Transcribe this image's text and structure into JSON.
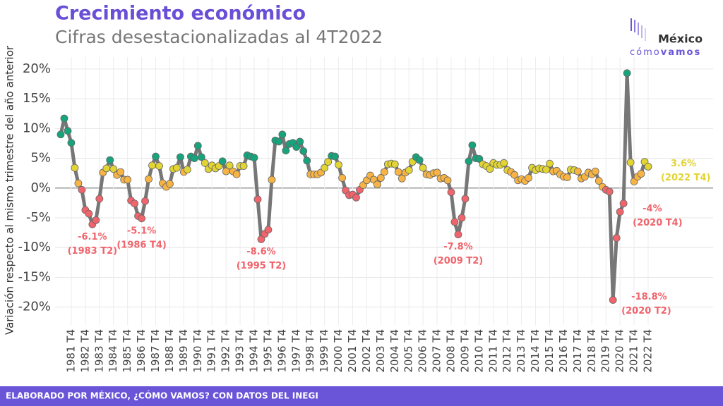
{
  "chart_data": {
    "type": "line",
    "title": "Crecimiento económico",
    "subtitle": "Cifras desestacionalizadas al 4T2022",
    "y_label": "Variación respecto al mismo trimestre del año anterior",
    "footer": "ELABORADO POR MÉXICO, ¿CÓMO VAMOS? CON DATOS DEL INEGI",
    "logo": {
      "top": "México",
      "bottom_light": "cómo",
      "bottom_bold": "vamos"
    },
    "categories": [
      null,
      null,
      null,
      "1981 T4",
      null,
      null,
      null,
      "1982 T4",
      null,
      null,
      null,
      "1983 T4",
      null,
      null,
      null,
      "1984 T4",
      null,
      null,
      null,
      "1985 T4",
      null,
      null,
      null,
      "1986 T4",
      null,
      null,
      null,
      "1987 T4",
      null,
      null,
      null,
      "1988 T4",
      null,
      null,
      null,
      "1989 T4",
      null,
      null,
      null,
      "1990 T4",
      null,
      null,
      null,
      "1991 T4",
      null,
      null,
      null,
      "1992 T4",
      null,
      null,
      null,
      "1993 T4",
      null,
      null,
      null,
      "1994 T4",
      null,
      null,
      null,
      "1995 T4",
      null,
      null,
      null,
      "1996 T4",
      null,
      null,
      null,
      "1997 T4",
      null,
      null,
      null,
      "1998 T4",
      null,
      null,
      null,
      "1999 T4",
      null,
      null,
      null,
      "2000 T4",
      null,
      null,
      null,
      "2001 T4",
      null,
      null,
      null,
      "2002 T4",
      null,
      null,
      null,
      "2003 T4",
      null,
      null,
      null,
      "2004 T4",
      null,
      null,
      null,
      "2005 T4",
      null,
      null,
      null,
      "2006 T4",
      null,
      null,
      null,
      "2007 T4",
      null,
      null,
      null,
      "2008 T4",
      null,
      null,
      null,
      "2009 T4",
      null,
      null,
      null,
      "2010 T4",
      null,
      null,
      null,
      "2011 T4",
      null,
      null,
      null,
      "2012 T4",
      null,
      null,
      null,
      "2013 T4",
      null,
      null,
      null,
      "2014 T4",
      null,
      null,
      null,
      "2015 T4",
      null,
      null,
      null,
      "2016 T4",
      null,
      null,
      null,
      "2017 T4",
      null,
      null,
      null,
      "2018 T4",
      null,
      null,
      null,
      "2019 T4",
      null,
      null,
      null,
      "2020 T4",
      null,
      null,
      null,
      "2021 T4",
      null,
      null,
      null,
      "2022 T4"
    ],
    "series": [
      {
        "color": "#777777",
        "values": [
          9.0,
          11.7,
          9.6,
          7.6,
          3.4,
          0.8,
          -0.3,
          -3.7,
          -4.3,
          -6.1,
          -5.4,
          -1.8,
          2.6,
          3.3,
          4.7,
          3.2,
          2.2,
          2.7,
          1.4,
          1.4,
          -2.1,
          -2.6,
          -4.7,
          -5.1,
          -2.2,
          1.5,
          3.8,
          5.3,
          3.7,
          0.8,
          0.2,
          0.7,
          3.2,
          3.4,
          5.2,
          2.7,
          3.1,
          5.3,
          5.0,
          7.1,
          5.2,
          4.2,
          3.2,
          3.8,
          3.3,
          3.7,
          4.5,
          2.8,
          3.8,
          2.8,
          2.3,
          3.7,
          3.7,
          5.5,
          5.3,
          5.1,
          -1.9,
          -8.6,
          -7.7,
          -7.0,
          1.4,
          8.0,
          7.8,
          9.0,
          6.3,
          7.4,
          7.6,
          6.9,
          7.8,
          6.2,
          4.6,
          2.3,
          2.3,
          2.3,
          2.6,
          3.4,
          4.4,
          5.4,
          5.3,
          3.9,
          1.7,
          -0.4,
          -1.2,
          -1.1,
          -1.6,
          -0.3,
          0.5,
          1.3,
          2.1,
          1.4,
          0.6,
          1.7,
          2.7,
          4.0,
          4.1,
          4.0,
          2.7,
          1.6,
          2.6,
          3.0,
          4.4,
          5.2,
          4.7,
          3.4,
          2.3,
          2.2,
          2.5,
          2.6,
          1.6,
          1.7,
          1.3,
          -0.7,
          -5.7,
          -7.8,
          -5.0,
          -1.8,
          4.5,
          7.2,
          5.0,
          4.9,
          4.0,
          3.7,
          3.2,
          4.2,
          3.9,
          3.9,
          4.2,
          3.0,
          2.7,
          2.2,
          1.3,
          1.5,
          1.2,
          1.7,
          3.4,
          3.0,
          3.3,
          3.2,
          3.1,
          4.1,
          2.8,
          2.9,
          2.3,
          1.9,
          1.8,
          3.1,
          3.0,
          2.8,
          1.6,
          1.9,
          2.6,
          2.3,
          2.8,
          1.2,
          0.2,
          -0.3,
          -0.6,
          -18.8,
          -8.4,
          -4.0,
          -2.6,
          19.3,
          4.3,
          1.1,
          1.9,
          2.4,
          4.4,
          3.6
        ]
      }
    ],
    "point_colors": [
      {
        "below": 0,
        "color": "#f0646c"
      },
      {
        "below": 3,
        "color": "#f7b444"
      },
      {
        "below": 4.5,
        "color": "#e2d433"
      },
      {
        "below": 100,
        "color": "#17a37b"
      }
    ],
    "annotations": [
      {
        "value": -6.1,
        "label": "-6.1%",
        "period": "(1983 T2)"
      },
      {
        "value": -5.1,
        "label": "-5.1%",
        "period": "(1986 T4)"
      },
      {
        "value": -8.6,
        "label": "-8.6%",
        "period": "(1995 T2)"
      },
      {
        "value": -7.8,
        "label": "-7.8%",
        "period": "(2009 T2)"
      },
      {
        "value": -18.8,
        "label": "-18.8%",
        "period": "(2020 T2)"
      },
      {
        "value": -4.0,
        "label": "-4%",
        "period": "(2020 T4)"
      },
      {
        "value": 3.6,
        "label": "3.6%",
        "period": "(2022 T4)"
      }
    ],
    "ylim": [
      -23,
      22
    ],
    "yticks": [
      {
        "value": -20,
        "label": "-20%"
      },
      {
        "value": -15,
        "label": "-15%"
      },
      {
        "value": -10,
        "label": "-10%"
      },
      {
        "value": -5,
        "label": "-5%"
      },
      {
        "value": 0,
        "label": "0%"
      },
      {
        "value": 5,
        "label": "5%"
      },
      {
        "value": 10,
        "label": "10%"
      },
      {
        "value": 15,
        "label": "15%"
      },
      {
        "value": 20,
        "label": "20%"
      }
    ],
    "grid": true
  }
}
